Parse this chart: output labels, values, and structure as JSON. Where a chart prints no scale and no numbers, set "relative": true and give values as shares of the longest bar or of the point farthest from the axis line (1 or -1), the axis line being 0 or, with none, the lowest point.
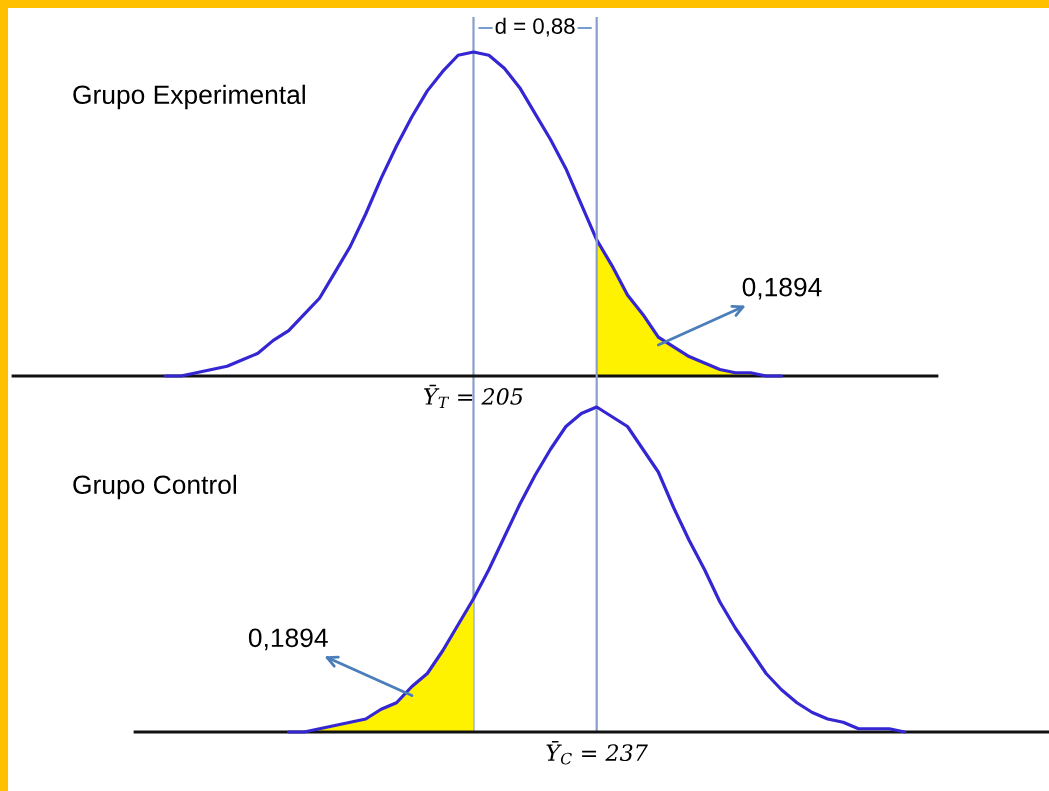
{
  "chart_data": [
    {
      "type": "line",
      "title": "Grupo Experimental",
      "relative": true,
      "categories": [
        null,
        null,
        null,
        null,
        null,
        null,
        null,
        null,
        null,
        null,
        null,
        null,
        null,
        null,
        null,
        null,
        null,
        null,
        null,
        null,
        null,
        null,
        null,
        null,
        null,
        null,
        null,
        null,
        null,
        null,
        null,
        null,
        null,
        null,
        null,
        null,
        null,
        null,
        null,
        null,
        null
      ],
      "series": [
        {
          "type": "area",
          "color": "#fff200",
          "values": [
            null,
            null,
            null,
            null,
            null,
            null,
            null,
            null,
            null,
            null,
            null,
            null,
            null,
            null,
            null,
            null,
            null,
            null,
            null,
            null,
            null,
            null,
            null,
            null,
            null,
            null,
            null,
            null,
            0.42,
            0.34,
            0.25,
            0.19,
            0.12,
            0.09,
            0.06,
            0.04,
            0.02,
            0.01,
            0.01,
            0,
            0
          ]
        },
        {
          "color": "#3526d3",
          "values": [
            0,
            0,
            0.01,
            0.02,
            0.03,
            0.05,
            0.07,
            0.11,
            0.14,
            0.19,
            0.24,
            0.32,
            0.4,
            0.5,
            0.61,
            0.71,
            0.8,
            0.88,
            0.94,
            0.99,
            1,
            0.99,
            0.95,
            0.89,
            0.81,
            0.73,
            0.64,
            0.53,
            0.42,
            0.34,
            0.25,
            0.19,
            0.12,
            0.09,
            0.06,
            0.04,
            0.02,
            0.01,
            0.01,
            0,
            0
          ]
        }
      ],
      "ref_lines": [
        {
          "axis": "x",
          "label": "Ȳ$_{T}$ = 205",
          "color": "#8a9fcc"
        }
      ],
      "annotations": [
        "0,1894",
        "d = 0,88"
      ]
    },
    {
      "type": "line",
      "title": "Grupo Control",
      "relative": true,
      "categories": [
        null,
        null,
        null,
        null,
        null,
        null,
        null,
        null,
        null,
        null,
        null,
        null,
        null,
        null,
        null,
        null,
        null,
        null,
        null,
        null,
        null,
        null,
        null,
        null,
        null,
        null,
        null,
        null,
        null,
        null,
        null,
        null,
        null,
        null,
        null,
        null,
        null,
        null,
        null,
        null,
        null
      ],
      "series": [
        {
          "type": "area",
          "color": "#fff200",
          "values": [
            0,
            0,
            0.01,
            0.02,
            0.03,
            0.04,
            0.07,
            0.09,
            0.14,
            0.18,
            0.25,
            0.33,
            0.41,
            null,
            null,
            null,
            null,
            null,
            null,
            null,
            null,
            null,
            null,
            null,
            null,
            null,
            null,
            null,
            null,
            null,
            null,
            null,
            null,
            null,
            null,
            null,
            null,
            null,
            null,
            null,
            null
          ]
        },
        {
          "color": "#3526d3",
          "values": [
            0,
            0,
            0.01,
            0.02,
            0.03,
            0.04,
            0.07,
            0.09,
            0.14,
            0.18,
            0.25,
            0.33,
            0.41,
            0.5,
            0.6,
            0.7,
            0.79,
            0.87,
            0.94,
            0.98,
            1,
            0.97,
            0.94,
            0.87,
            0.8,
            0.69,
            0.59,
            0.5,
            0.4,
            0.32,
            0.25,
            0.18,
            0.13,
            0.09,
            0.06,
            0.04,
            0.03,
            0.01,
            0.01,
            0.01,
            0
          ]
        }
      ],
      "ref_lines": [
        {
          "axis": "x",
          "label": "Ȳ$_{C}$ = 237",
          "color": "#8a9fcc"
        }
      ],
      "annotations": [
        "0,1894"
      ]
    }
  ]
}
